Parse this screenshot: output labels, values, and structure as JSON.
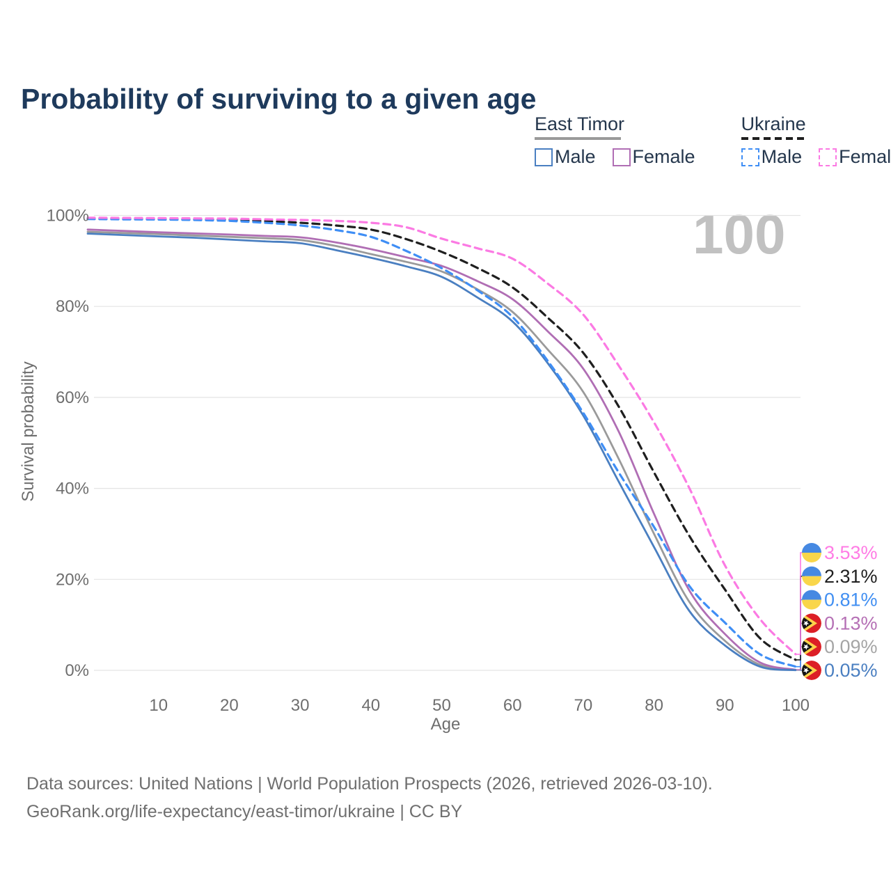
{
  "title": "Probability of surviving to a given age",
  "watermark": "100",
  "legend": {
    "position": "top-right",
    "groups": [
      {
        "label": "East Timor",
        "style": "solid",
        "underline_color": "#9a9a9a",
        "items": [
          {
            "label": "Male",
            "color": "#4a7fc1",
            "dashed": false
          },
          {
            "label": "Female",
            "color": "#b06eb4",
            "dashed": false
          }
        ]
      },
      {
        "label": "Ukraine",
        "style": "dashed",
        "underline_color": "#1f1f1f",
        "items": [
          {
            "label": "Male",
            "color": "#3f8ef5",
            "dashed": true
          },
          {
            "label": "Female",
            "color": "#fb7ae3",
            "dashed": true
          }
        ]
      }
    ]
  },
  "chart_data": {
    "type": "line",
    "title": "Probability of surviving to a given age",
    "xlabel": "Age",
    "ylabel": "Survival probability",
    "xlim": [
      0,
      100
    ],
    "ylim": [
      0,
      100
    ],
    "grid": true,
    "annotation_age": "100",
    "x_ticks": [
      10,
      20,
      30,
      40,
      50,
      60,
      70,
      80,
      90,
      100
    ],
    "y_tick_values": [
      0,
      20,
      40,
      60,
      80,
      100
    ],
    "y_tick_labels": [
      "0%",
      "20%",
      "40%",
      "60%",
      "80%",
      "100%"
    ],
    "ages": [
      0,
      5,
      10,
      15,
      20,
      25,
      30,
      35,
      40,
      45,
      50,
      55,
      60,
      65,
      70,
      75,
      80,
      85,
      90,
      95,
      100
    ],
    "series": [
      {
        "country": "East Timor",
        "group": "All",
        "color": "#9a9a9a",
        "dashed": false,
        "flag": "east-timor",
        "end_label": "0.09%",
        "end_label_color": "#a5a5a5",
        "values": [
          96.4,
          96.15,
          95.9,
          95.6,
          95.3,
          95.0,
          94.6,
          93.3,
          91.5,
          89.8,
          87.7,
          83.8,
          78.8,
          70.5,
          61.2,
          46.5,
          30.0,
          15.0,
          6.5,
          1.2,
          0.09
        ]
      },
      {
        "country": "East Timor",
        "group": "Female",
        "color": "#b06eb4",
        "dashed": false,
        "flag": "east-timor",
        "end_label": "0.13%",
        "end_label_color": "#b570b5",
        "values": [
          96.9,
          96.6,
          96.3,
          96.05,
          95.8,
          95.5,
          95.2,
          94.1,
          92.6,
          90.8,
          88.9,
          85.6,
          81.6,
          74.5,
          66.3,
          52.5,
          34.4,
          17.5,
          8.0,
          1.7,
          0.13
        ]
      },
      {
        "country": "East Timor",
        "group": "Male",
        "color": "#4a7fc1",
        "dashed": false,
        "flag": "east-timor",
        "end_label": "0.05%",
        "end_label_color": "#4a7fc1",
        "values": [
          96.0,
          95.7,
          95.4,
          95.1,
          94.7,
          94.3,
          93.9,
          92.4,
          90.7,
          88.8,
          86.5,
          82.0,
          76.7,
          67.5,
          56.0,
          41.5,
          27.1,
          13.0,
          5.5,
          0.8,
          0.05
        ]
      },
      {
        "country": "Ukraine",
        "group": "All",
        "color": "#1f1f1f",
        "dashed": true,
        "flag": "ukraine",
        "end_label": "2.31%",
        "end_label_color": "#1f1f1f",
        "values": [
          99.3,
          99.25,
          99.2,
          99.1,
          99.0,
          98.75,
          98.4,
          97.8,
          96.9,
          94.8,
          92.0,
          88.5,
          84.2,
          77.5,
          69.8,
          58.0,
          43.5,
          29.5,
          17.8,
          7.0,
          2.31
        ]
      },
      {
        "country": "Ukraine",
        "group": "Male",
        "color": "#3f8ef5",
        "dashed": true,
        "flag": "ukraine",
        "end_label": "0.81%",
        "end_label_color": "#418ff2",
        "values": [
          99.2,
          99.15,
          99.1,
          99.0,
          98.8,
          98.4,
          97.8,
          96.8,
          95.3,
          92.2,
          88.4,
          83.6,
          77.7,
          68.0,
          56.6,
          43.5,
          31.5,
          18.5,
          10.5,
          3.5,
          0.81
        ]
      },
      {
        "country": "Ukraine",
        "group": "Female",
        "color": "#fb7ae3",
        "dashed": true,
        "flag": "ukraine",
        "end_label": "3.53%",
        "end_label_color": "#ff7ce5",
        "values": [
          99.5,
          99.45,
          99.4,
          99.35,
          99.3,
          99.15,
          99.0,
          98.8,
          98.4,
          97.4,
          94.9,
          92.8,
          90.5,
          85.0,
          78.2,
          67.0,
          54.5,
          40.0,
          23.1,
          11.2,
          3.53
        ]
      }
    ]
  },
  "footer": {
    "line1": "Data sources: United Nations | World Population Prospects (2026, retrieved 2026-03-10).",
    "line2": "GeoRank.org/life-expectancy/east-timor/ukraine | CC BY"
  }
}
